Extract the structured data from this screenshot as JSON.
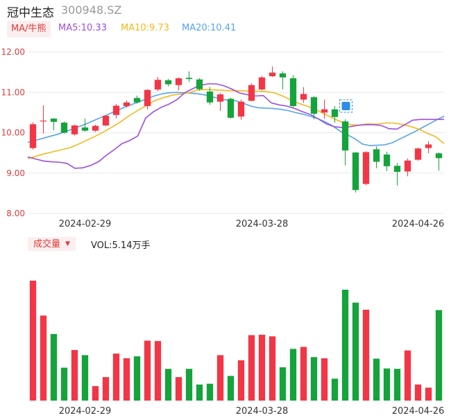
{
  "header": {
    "stock_name": "冠中生态",
    "stock_code": "300948.SZ",
    "ma_button": "MA/牛熊",
    "ma5": "MA5:10.33",
    "ma10": "MA10:9.73",
    "ma20": "MA20:10.41"
  },
  "volume_panel": {
    "button": "成交量",
    "value": "VOL:5.14万手"
  },
  "colors": {
    "up": "#f23645",
    "down": "#15a33c",
    "ma5": "#9b4de0",
    "ma10": "#f3b81a",
    "ma20": "#55a3e8"
  },
  "chart_data": {
    "type": "candlestick",
    "ylim": [
      8.0,
      12.0
    ],
    "yticks": [
      "12.00",
      "11.00",
      "10.00",
      "9.00",
      "8.00"
    ],
    "xticks": [
      {
        "label": "2024-02-29",
        "index": 5
      },
      {
        "label": "2024-03-28",
        "index": 22
      },
      {
        "label": "2024-04-26",
        "index": 37
      }
    ],
    "candles": [
      {
        "o": 9.62,
        "c": 10.21,
        "h": 10.26,
        "l": 9.58
      },
      {
        "o": 10.28,
        "c": 10.3,
        "h": 10.68,
        "l": 9.98
      },
      {
        "o": 10.35,
        "c": 10.27,
        "h": 10.36,
        "l": 10.06
      },
      {
        "o": 10.25,
        "c": 10.0,
        "h": 10.28,
        "l": 9.98
      },
      {
        "o": 9.96,
        "c": 10.18,
        "h": 10.2,
        "l": 9.93
      },
      {
        "o": 10.13,
        "c": 10.05,
        "h": 10.35,
        "l": 10.03
      },
      {
        "o": 10.05,
        "c": 10.17,
        "h": 10.2,
        "l": 10.02
      },
      {
        "o": 10.18,
        "c": 10.42,
        "h": 10.44,
        "l": 10.16
      },
      {
        "o": 10.44,
        "c": 10.67,
        "h": 10.71,
        "l": 10.35
      },
      {
        "o": 10.66,
        "c": 10.75,
        "h": 10.8,
        "l": 10.62
      },
      {
        "o": 10.86,
        "c": 10.75,
        "h": 10.92,
        "l": 10.72
      },
      {
        "o": 10.66,
        "c": 11.06,
        "h": 11.08,
        "l": 10.58
      },
      {
        "o": 11.07,
        "c": 11.31,
        "h": 11.38,
        "l": 11.03
      },
      {
        "o": 11.3,
        "c": 11.2,
        "h": 11.33,
        "l": 11.15
      },
      {
        "o": 11.18,
        "c": 11.35,
        "h": 11.37,
        "l": 11.05
      },
      {
        "o": 11.36,
        "c": 11.33,
        "h": 11.52,
        "l": 11.26
      },
      {
        "o": 11.32,
        "c": 11.08,
        "h": 11.35,
        "l": 11.04
      },
      {
        "o": 11.02,
        "c": 10.75,
        "h": 11.13,
        "l": 10.69
      },
      {
        "o": 10.77,
        "c": 10.95,
        "h": 10.98,
        "l": 10.54
      },
      {
        "o": 10.84,
        "c": 10.37,
        "h": 10.87,
        "l": 10.35
      },
      {
        "o": 10.4,
        "c": 10.77,
        "h": 10.82,
        "l": 10.32
      },
      {
        "o": 10.79,
        "c": 11.18,
        "h": 11.22,
        "l": 10.78
      },
      {
        "o": 11.07,
        "c": 11.37,
        "h": 11.41,
        "l": 11.05
      },
      {
        "o": 11.4,
        "c": 11.49,
        "h": 11.64,
        "l": 11.38
      },
      {
        "o": 11.47,
        "c": 11.37,
        "h": 11.52,
        "l": 11.07
      },
      {
        "o": 11.35,
        "c": 10.66,
        "h": 11.43,
        "l": 10.63
      },
      {
        "o": 10.82,
        "c": 10.96,
        "h": 11.13,
        "l": 10.74
      },
      {
        "o": 10.88,
        "c": 10.47,
        "h": 10.91,
        "l": 10.33
      },
      {
        "o": 10.5,
        "c": 10.58,
        "h": 10.82,
        "l": 10.35
      },
      {
        "o": 10.58,
        "c": 10.39,
        "h": 10.66,
        "l": 10.25
      },
      {
        "o": 10.28,
        "c": 9.56,
        "h": 10.33,
        "l": 9.19
      },
      {
        "o": 9.51,
        "c": 8.58,
        "h": 9.52,
        "l": 8.52
      },
      {
        "o": 8.73,
        "c": 9.52,
        "h": 9.54,
        "l": 8.7
      },
      {
        "o": 9.59,
        "c": 9.28,
        "h": 9.66,
        "l": 9.12
      },
      {
        "o": 9.46,
        "c": 9.17,
        "h": 9.53,
        "l": 9.05
      },
      {
        "o": 9.18,
        "c": 9.03,
        "h": 9.25,
        "l": 8.69
      },
      {
        "o": 9.04,
        "c": 9.31,
        "h": 9.36,
        "l": 8.92
      },
      {
        "o": 9.33,
        "c": 9.61,
        "h": 9.63,
        "l": 9.31
      },
      {
        "o": 9.62,
        "c": 9.71,
        "h": 9.79,
        "l": 9.49
      },
      {
        "o": 9.49,
        "c": 9.37,
        "h": 9.51,
        "l": 9.06
      }
    ],
    "volumes": [
      30.6,
      21.7,
      17.0,
      8.4,
      12.9,
      11.6,
      3.7,
      6.0,
      12.0,
      10.8,
      11.3,
      15.3,
      15.2,
      8.1,
      6.0,
      8.1,
      4.1,
      4.3,
      11.6,
      6.3,
      10.3,
      16.7,
      16.8,
      16.4,
      8.5,
      13.2,
      13.7,
      11.1,
      10.8,
      5.6,
      28.3,
      25.0,
      23.2,
      10.7,
      8.2,
      8.1,
      12.8,
      4.1,
      3.3,
      23.1
    ],
    "ma5": [
      9.4,
      9.35,
      9.3,
      9.28,
      9.27,
      9.24,
      9.12,
      9.13,
      9.19,
      9.28,
      9.44,
      9.58,
      9.73,
      9.81,
      9.92,
      10.36,
      10.52,
      10.63,
      10.71,
      10.82,
      10.99,
      11.09,
      11.18,
      11.21,
      11.21,
      11.16,
      11.08,
      10.98,
      10.94,
      10.91,
      10.92,
      10.74,
      10.69,
      10.66,
      10.6,
      10.52,
      10.45,
      10.34,
      10.22,
      10.15,
      10.13,
      10.15,
      10.18,
      10.2,
      10.2,
      10.18,
      10.1,
      10.09,
      10.2,
      10.31,
      10.33,
      10.33,
      10.33,
      10.33
    ],
    "ma10": [
      9.36,
      9.42,
      9.48,
      9.53,
      9.58,
      9.63,
      9.72,
      9.82,
      9.92,
      10.03,
      10.15,
      10.28,
      10.43,
      10.56,
      10.68,
      10.8,
      10.87,
      10.93,
      10.96,
      10.99,
      11.06,
      11.07,
      11.06,
      11.05,
      11.04,
      11.04,
      11.03,
      11.03,
      11.02,
      10.99,
      10.91,
      10.81,
      10.72,
      10.65,
      10.56,
      10.46,
      10.35,
      10.26,
      10.2,
      10.19,
      10.22,
      10.21,
      10.24,
      10.24,
      10.21,
      10.16,
      10.09,
      9.99,
      9.9,
      9.73
    ],
    "ma20": [
      9.76,
      9.81,
      9.86,
      9.91,
      9.96,
      10.02,
      10.09,
      10.16,
      10.23,
      10.31,
      10.39,
      10.47,
      10.55,
      10.63,
      10.7,
      10.77,
      10.84,
      10.91,
      10.96,
      10.99,
      11.0,
      10.99,
      10.98,
      10.96,
      10.93,
      10.88,
      10.84,
      10.8,
      10.79,
      10.73,
      10.66,
      10.62,
      10.61,
      10.6,
      10.58,
      10.55,
      10.5,
      10.46,
      10.41,
      10.35,
      10.27,
      10.17,
      10.04,
      9.95,
      9.85,
      9.72,
      9.68,
      9.69,
      9.7,
      9.75,
      9.84,
      9.93,
      10.02,
      10.12,
      10.22,
      10.32,
      10.41
    ]
  }
}
